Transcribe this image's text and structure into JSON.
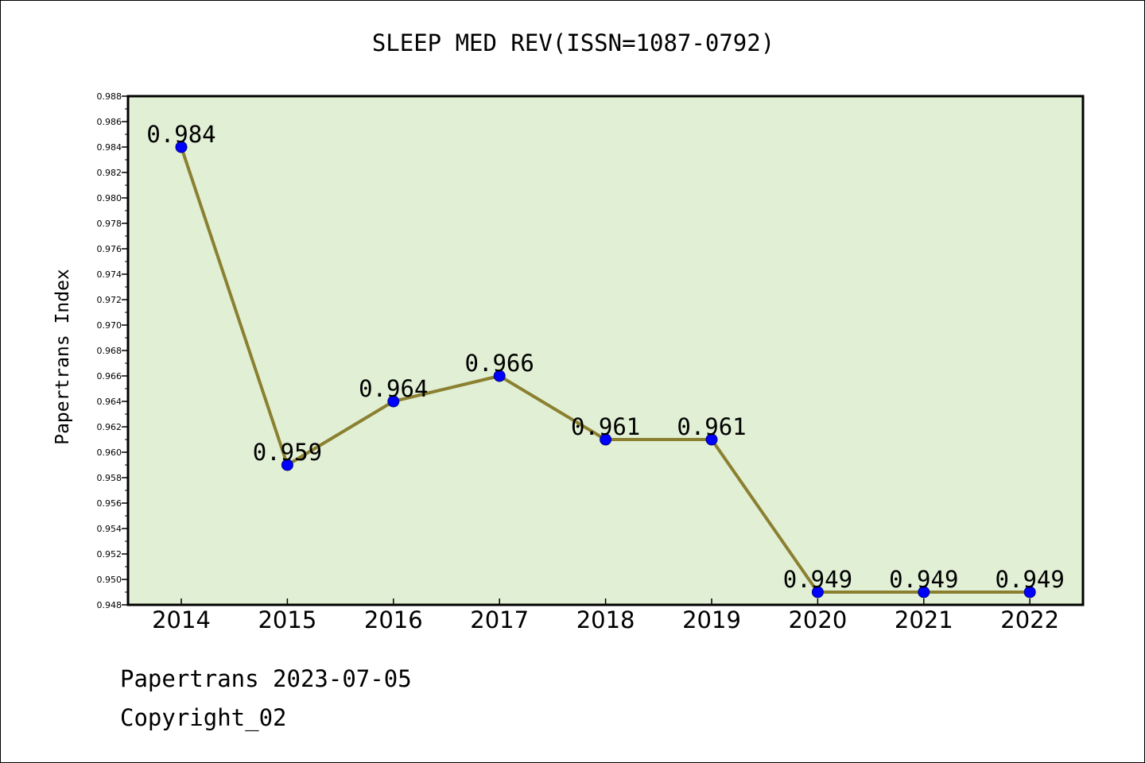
{
  "chart_data": {
    "type": "line",
    "title": "SLEEP MED REV(ISSN=1087-0792)",
    "xlabel": "",
    "ylabel": "Papertrans Index",
    "categories": [
      "2014",
      "2015",
      "2016",
      "2017",
      "2018",
      "2019",
      "2020",
      "2021",
      "2022"
    ],
    "values": [
      0.984,
      0.959,
      0.964,
      0.966,
      0.961,
      0.961,
      0.949,
      0.949,
      0.949
    ],
    "data_labels": [
      "0.984",
      "0.959",
      "0.964",
      "0.966",
      "0.961",
      "0.961",
      "0.949",
      "0.949",
      "0.949"
    ],
    "ylim": [
      0.948,
      0.988
    ],
    "yticks": [
      "0.948",
      "0.950",
      "0.952",
      "0.954",
      "0.956",
      "0.958",
      "0.960",
      "0.962",
      "0.964",
      "0.966",
      "0.968",
      "0.970",
      "0.972",
      "0.974",
      "0.976",
      "0.978",
      "0.980",
      "0.982",
      "0.984",
      "0.986",
      "0.988"
    ],
    "grid": false,
    "colors": {
      "line": "#8b8030",
      "marker": "#0000ff",
      "plot_background": "#e1efd5",
      "axis": "#000000"
    }
  },
  "footer": {
    "date_text": "Papertrans 2023-07-05",
    "copyright_text": "Copyright_02"
  }
}
